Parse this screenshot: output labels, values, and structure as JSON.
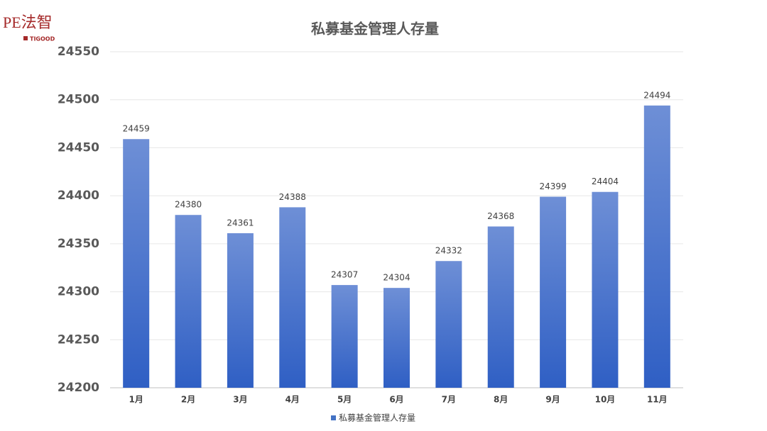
{
  "logo": {
    "text": "PE法智",
    "subtext": "TIGOOD"
  },
  "chart_data": {
    "type": "bar",
    "title": "私募基金管理人存量",
    "categories": [
      "1月",
      "2月",
      "3月",
      "4月",
      "5月",
      "6月",
      "7月",
      "8月",
      "9月",
      "10月",
      "11月"
    ],
    "series": [
      {
        "name": "私募基金管理人存量",
        "color": "#4472c4",
        "values": [
          24459,
          24380,
          24361,
          24388,
          24307,
          24304,
          24332,
          24368,
          24399,
          24404,
          24494
        ]
      }
    ],
    "ylim": [
      24200,
      24550
    ],
    "yticks": [
      24200,
      24250,
      24300,
      24350,
      24400,
      24450,
      24500,
      24550
    ],
    "grid": true,
    "legend": "bottom"
  }
}
